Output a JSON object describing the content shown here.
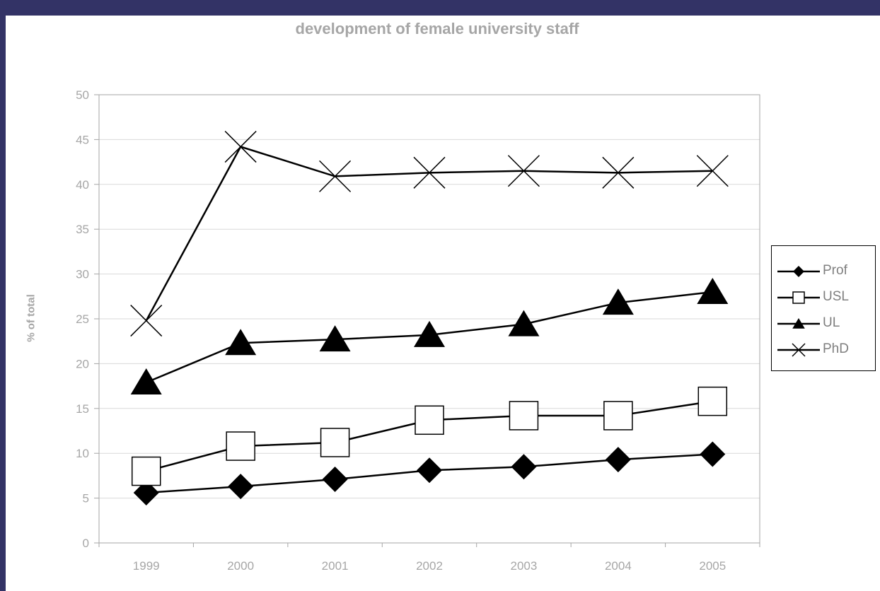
{
  "chart_data": {
    "type": "line",
    "title": "development of female university staff",
    "xlabel": "",
    "ylabel": "% of total",
    "categories": [
      "1999",
      "2000",
      "2001",
      "2002",
      "2003",
      "2004",
      "2005"
    ],
    "ylim": [
      0,
      50
    ],
    "yticks": [
      "0",
      "5",
      "10",
      "15",
      "20",
      "25",
      "30",
      "35",
      "40",
      "45",
      "50"
    ],
    "grid": true,
    "legend_position": "right",
    "series": [
      {
        "name": "Prof",
        "marker": "diamond",
        "values": [
          5.6,
          6.3,
          7.1,
          8.1,
          8.5,
          9.3,
          9.9
        ]
      },
      {
        "name": "USL",
        "marker": "square",
        "values": [
          8.0,
          10.8,
          11.2,
          13.7,
          14.2,
          14.2,
          15.8
        ]
      },
      {
        "name": "UL",
        "marker": "triangle",
        "values": [
          17.9,
          22.3,
          22.7,
          23.2,
          24.4,
          26.8,
          28.0
        ]
      },
      {
        "name": "PhD",
        "marker": "x",
        "values": [
          24.8,
          44.2,
          40.9,
          41.3,
          41.5,
          41.3,
          41.5
        ]
      }
    ]
  }
}
